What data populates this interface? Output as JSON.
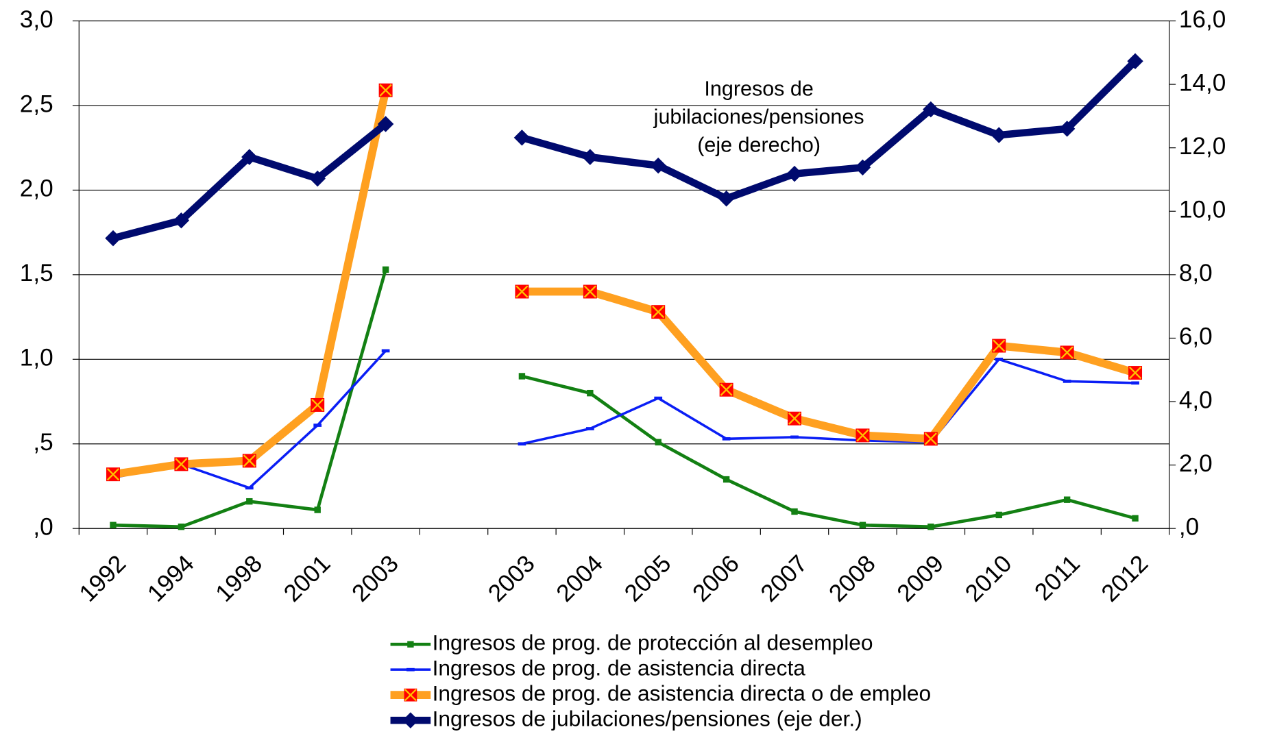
{
  "chart_data": {
    "type": "line",
    "annotation": [
      "Ingresos de",
      "jubilaciones/pensiones",
      "(eje derecho)"
    ],
    "categories": [
      "1992",
      "1994",
      "1998",
      "2001",
      "2003",
      null,
      "2003",
      "2004",
      "2005",
      "2006",
      "2007",
      "2008",
      "2009",
      "2010",
      "2011",
      "2012"
    ],
    "series": [
      {
        "name": "Ingresos de prog. de protección al desempleo",
        "color": "#138013",
        "marker": "square",
        "values": [
          0.02,
          0.01,
          0.16,
          0.11,
          1.53,
          null,
          0.9,
          0.8,
          0.51,
          0.29,
          0.1,
          0.02,
          0.01,
          0.08,
          0.17,
          0.06
        ]
      },
      {
        "name": "Ingresos de prog. de asistencia directa",
        "color": "#0a1ef5",
        "marker": "dash",
        "values": [
          0.3,
          0.38,
          0.24,
          0.61,
          1.05,
          null,
          0.5,
          0.59,
          0.77,
          0.53,
          0.54,
          0.52,
          0.51,
          1.0,
          0.87,
          0.86
        ]
      },
      {
        "name": "Ingresos de prog. de asistencia directa o de empleo",
        "color": "#ffa020",
        "marker": "cross-square",
        "values": [
          0.32,
          0.38,
          0.4,
          0.73,
          2.59,
          null,
          1.4,
          1.4,
          1.28,
          0.82,
          0.65,
          0.55,
          0.53,
          1.08,
          1.04,
          0.92
        ]
      },
      {
        "name": "Ingresos de jubilaciones/pensiones (eje der.)",
        "color": "#000a6e",
        "marker": "diamond",
        "axis": "y2",
        "values": [
          9.15,
          9.71,
          11.71,
          11.03,
          12.75,
          null,
          12.32,
          11.71,
          11.44,
          10.4,
          11.18,
          11.38,
          13.21,
          12.4,
          12.6,
          14.73
        ]
      }
    ],
    "ylim": [
      0,
      3
    ],
    "yticks": [
      {
        "value": 0,
        "label": ",0"
      },
      {
        "value": 0.5,
        "label": ",5"
      },
      {
        "value": 1,
        "label": "1,0"
      },
      {
        "value": 1.5,
        "label": "1,5"
      },
      {
        "value": 2,
        "label": "2,0"
      },
      {
        "value": 2.5,
        "label": "2,5"
      },
      {
        "value": 3,
        "label": "3,0"
      }
    ],
    "y2lim": [
      0,
      16
    ],
    "y2ticks": [
      {
        "value": 0,
        "label": ",0"
      },
      {
        "value": 2,
        "label": "2,0"
      },
      {
        "value": 4,
        "label": "4,0"
      },
      {
        "value": 6,
        "label": "6,0"
      },
      {
        "value": 8,
        "label": "8,0"
      },
      {
        "value": 10,
        "label": "10,0"
      },
      {
        "value": 12,
        "label": "12,0"
      },
      {
        "value": 14,
        "label": "14,0"
      },
      {
        "value": 16,
        "label": "16,0"
      }
    ],
    "grid": true,
    "legend": "bottom"
  }
}
